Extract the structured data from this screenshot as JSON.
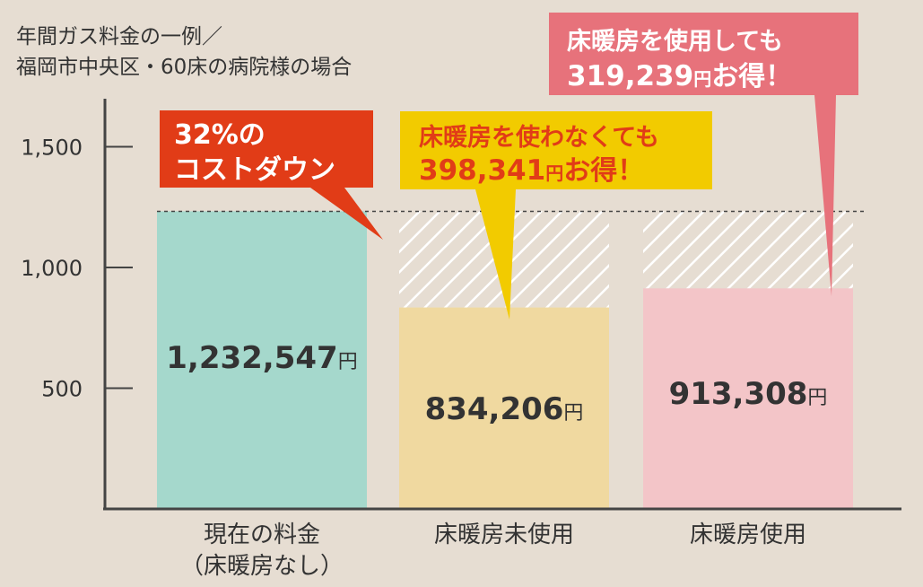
{
  "chart_data": {
    "type": "bar",
    "title": "年間ガス料金の一例／",
    "subtitle": "福岡市中央区・60床の病院様の場合",
    "categories": [
      "現在の料金\n（床暖房なし）",
      "床暖房未使用",
      "床暖房使用"
    ],
    "values": [
      1232547,
      834206,
      913308
    ],
    "value_labels": [
      "1,232,547",
      "834,206",
      "913,308"
    ],
    "value_unit": "円",
    "y_ticks": [
      500,
      1000,
      1500
    ],
    "y_tick_labels": [
      "500",
      "1,000",
      "1,500"
    ],
    "ylim": [
      0,
      1650
    ],
    "y_scale_divisor": 1000,
    "colors": [
      "#a5d8cc",
      "#f0d9a0",
      "#f3c5c8"
    ],
    "reference_line": 1232547,
    "grid": false
  },
  "callouts": {
    "cost_down": {
      "line1": "32%の",
      "line2": "コストダウン",
      "color": "#e13c17"
    },
    "no_heating": {
      "line1": "床暖房を使わなくても",
      "amount": "398,341",
      "unit": "円",
      "suffix": "お得！",
      "color": "#f2cb00",
      "text_color": "#e13c17"
    },
    "with_heating": {
      "line1": "床暖房を使用しても",
      "amount": "319,239",
      "unit": "円",
      "suffix": "お得！",
      "color": "#e7727b",
      "text_color": "#ffffff"
    }
  }
}
